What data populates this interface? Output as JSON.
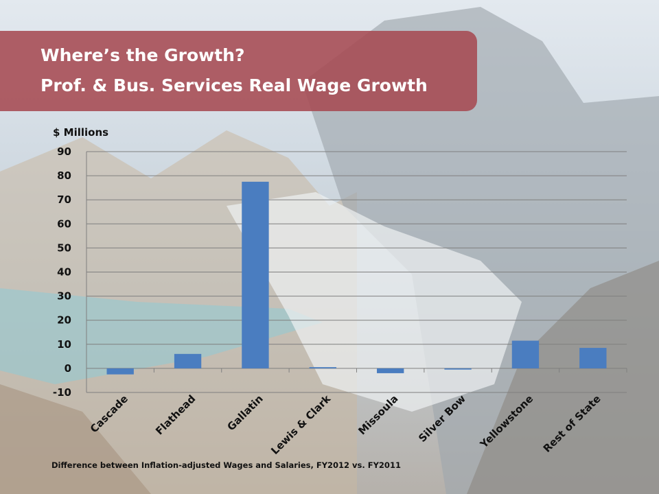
{
  "slide": {
    "title_line1": "Where’s the Growth?",
    "title_line2": "Prof. & Bus. Services Real Wage Growth",
    "footnote": "Difference between Inflation-adjusted Wages and Salaries, FY2012 vs. FY2011"
  },
  "chart_data": {
    "type": "bar",
    "ylabel": "$ Millions",
    "categories": [
      "Cascade",
      "Flathead",
      "Gallatin",
      "Lewis & Clark",
      "Missoula",
      "Silver Bow",
      "Yellowstone",
      "Rest of State"
    ],
    "values": [
      -2.5,
      6,
      77.5,
      0.5,
      -2,
      -0.5,
      11.5,
      8.5
    ],
    "ylim": [
      -10,
      90
    ],
    "yticks": [
      90,
      80,
      70,
      60,
      50,
      40,
      30,
      20,
      10,
      0,
      -10
    ],
    "grid": true,
    "bar_color": "#4a7dc0"
  }
}
